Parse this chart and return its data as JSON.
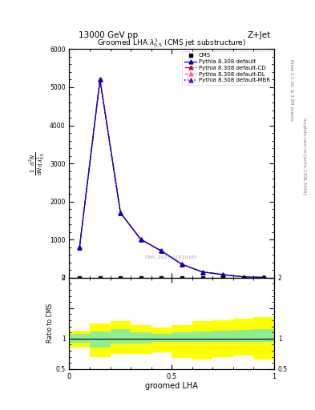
{
  "title_top": "13000 GeV pp",
  "title_right": "Z+Jet",
  "plot_title": "Groomed LHA $\\lambda^{1}_{0.5}$ (CMS jet substructure)",
  "ylabel_ratio": "Ratio to CMS",
  "xlabel": "groomed LHA",
  "watermark": "CMS_2021-01920187",
  "right_label": "Rivet 3.1.10, ≥ 3.2M events",
  "right_label2": "mcplots.cern.ch [arXiv:1306.3436]",
  "x_data": [
    0.05,
    0.15,
    0.25,
    0.35,
    0.45,
    0.55,
    0.65,
    0.75,
    0.85,
    0.95
  ],
  "pythia_default": [
    800,
    5200,
    1700,
    1000,
    700,
    350,
    150,
    80,
    20,
    5
  ],
  "pythia_cd": [
    800,
    5200,
    1700,
    1000,
    700,
    350,
    150,
    80,
    20,
    5
  ],
  "pythia_dl": [
    800,
    5200,
    1700,
    1000,
    700,
    350,
    150,
    80,
    20,
    5
  ],
  "pythia_mbr": [
    800,
    5200,
    1700,
    1000,
    700,
    350,
    150,
    80,
    20,
    5
  ],
  "cms_x": [
    0.05,
    0.15,
    0.25,
    0.35,
    0.45,
    0.55,
    0.65,
    0.75,
    0.85,
    0.95
  ],
  "cms_y": [
    0,
    0,
    0,
    0,
    0,
    0,
    0,
    0,
    0,
    0
  ],
  "ratio_green_low": [
    0.93,
    0.85,
    0.92,
    0.92,
    0.95,
    0.95,
    0.95,
    0.95,
    0.95,
    0.95
  ],
  "ratio_green_high": [
    1.07,
    1.12,
    1.15,
    1.1,
    1.08,
    1.1,
    1.12,
    1.13,
    1.14,
    1.15
  ],
  "ratio_yellow_low": [
    0.85,
    0.7,
    0.75,
    0.75,
    0.78,
    0.68,
    0.65,
    0.7,
    0.72,
    0.65
  ],
  "ratio_yellow_high": [
    1.13,
    1.25,
    1.28,
    1.22,
    1.18,
    1.22,
    1.28,
    1.3,
    1.32,
    1.35
  ],
  "color_default": "#0000cc",
  "color_cd": "#cc0033",
  "color_dl": "#ff6688",
  "color_mbr": "#6600cc",
  "ylim_main": [
    0,
    6000
  ],
  "ylim_ratio": [
    0.5,
    2.0
  ],
  "xlim": [
    0.0,
    1.0
  ],
  "yticks_main": [
    0,
    1000,
    2000,
    3000,
    4000,
    5000,
    6000
  ],
  "ytick_labels_main": [
    "0",
    "1000",
    "2000",
    "3000",
    "4000",
    "5000",
    "6000"
  ],
  "yticks_ratio": [
    0.5,
    1.0,
    1.5,
    2.0
  ],
  "ytick_labels_ratio": [
    "0.5",
    "1",
    "",
    "2"
  ],
  "ytick_labels_ratio_right": [
    "0.5",
    "1",
    "",
    "2"
  ]
}
